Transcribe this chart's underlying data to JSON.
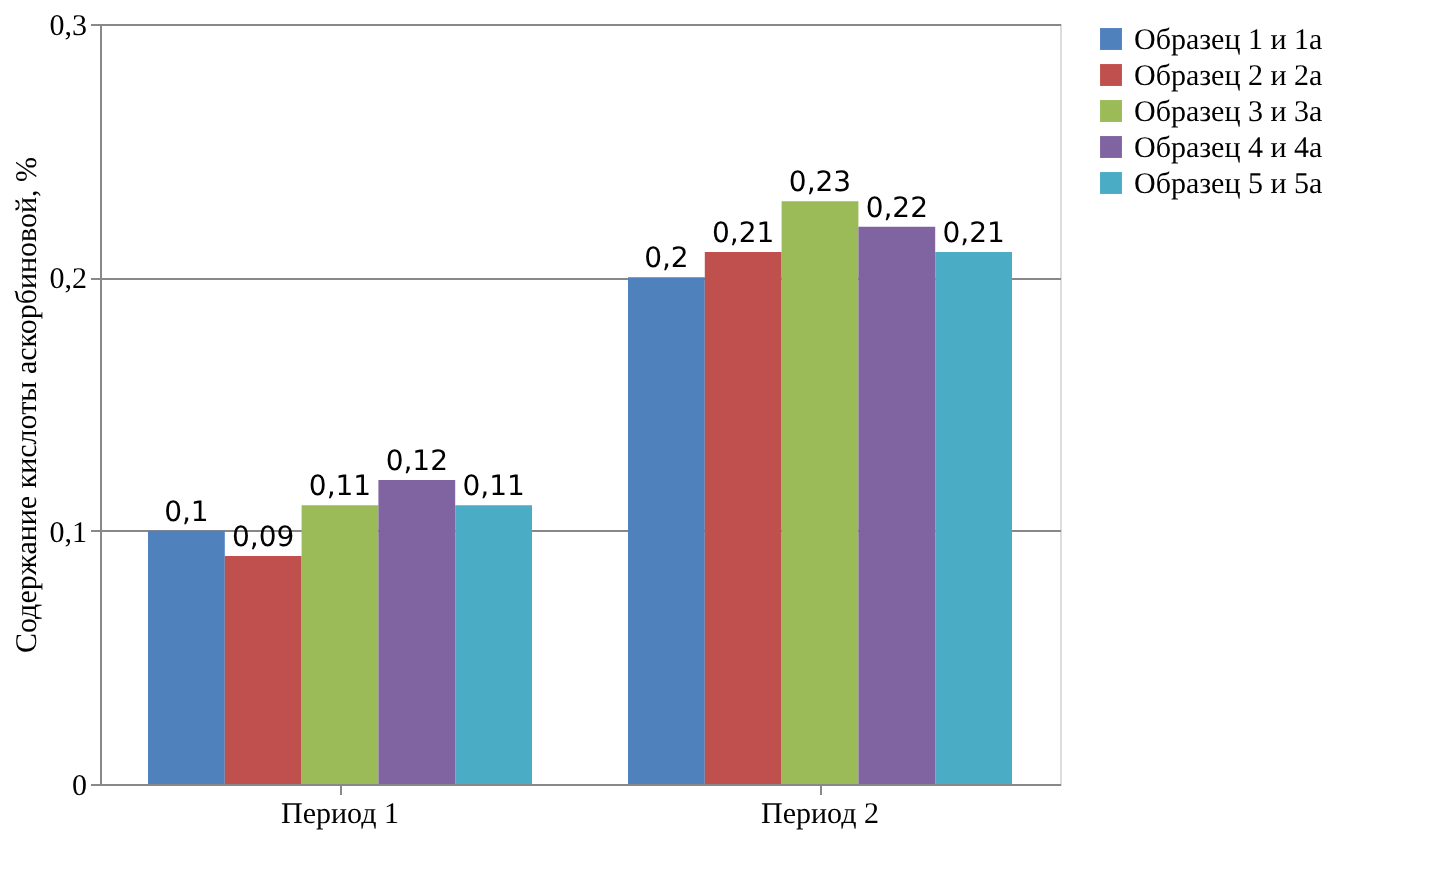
{
  "chart_data": {
    "type": "bar",
    "ylabel": "Содержание кислоты аскорбиновой, %",
    "categories": [
      "Период 1",
      "Период 2"
    ],
    "series": [
      {
        "name": "Образец 1 и 1а",
        "color": "#4f81bd",
        "values": [
          0.1,
          0.2
        ],
        "value_labels": [
          "0,1",
          "0,2"
        ]
      },
      {
        "name": "Образец 2 и 2а",
        "color": "#c0504d",
        "values": [
          0.09,
          0.21
        ],
        "value_labels": [
          "0,09",
          "0,21"
        ]
      },
      {
        "name": "Образец 3 и 3а",
        "color": "#9bbb59",
        "values": [
          0.11,
          0.23
        ],
        "value_labels": [
          "0,11",
          "0,23"
        ]
      },
      {
        "name": "Образец 4 и 4а",
        "color": "#8064a2",
        "values": [
          0.12,
          0.22
        ],
        "value_labels": [
          "0,12",
          "0,22"
        ]
      },
      {
        "name": "Образец 5 и 5а",
        "color": "#4bacc6",
        "values": [
          0.11,
          0.21
        ],
        "value_labels": [
          "0,11",
          "0,21"
        ]
      }
    ],
    "ylim": [
      0,
      0.3
    ],
    "yticks": [
      0,
      {
        "value": 0.1,
        "label": "0,1"
      },
      {
        "value": 0.2,
        "label": "0,2"
      },
      {
        "value": 0.3,
        "label": "0,3"
      }
    ],
    "grid": "y",
    "legend": "right"
  }
}
